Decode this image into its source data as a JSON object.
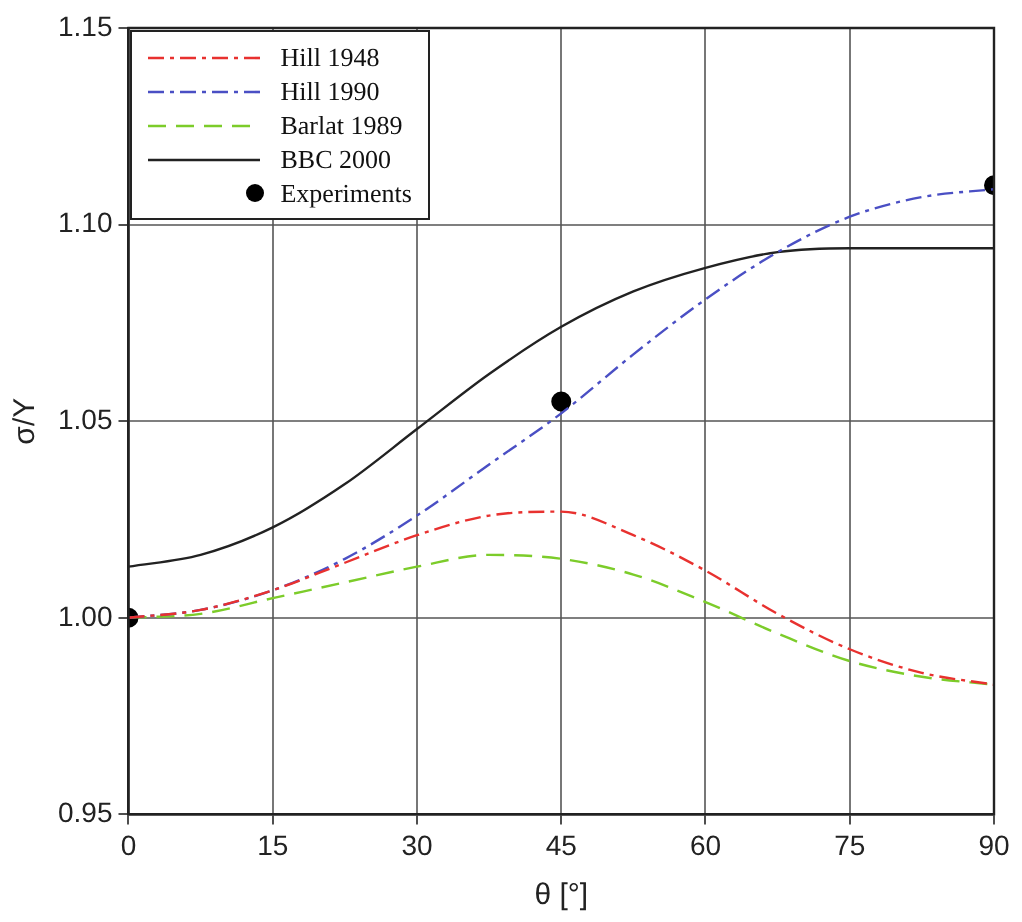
{
  "chart_data": {
    "type": "line",
    "xlabel": "θ [°]",
    "ylabel": "σ/Y",
    "xlim": [
      0,
      90
    ],
    "xticks": [
      0,
      15,
      30,
      45,
      60,
      75,
      90
    ],
    "ylim": [
      0.95,
      1.15
    ],
    "yticks": [
      {
        "value": 0.95,
        "label": "0.95"
      },
      {
        "value": 1.0,
        "label": "1.00"
      },
      {
        "value": 1.05,
        "label": "1.05"
      },
      {
        "value": 1.1,
        "label": "1.10"
      },
      {
        "value": 1.15,
        "label": "1.15"
      }
    ],
    "grid": true,
    "legend": "top left",
    "marker": "none",
    "series": [
      {
        "name": "Hill 1948",
        "color": "#e8312f",
        "line_style": "dashdot",
        "x": [
          0,
          7.5,
          15,
          22.5,
          30,
          37.5,
          45,
          52.5,
          60,
          67.5,
          75,
          82.5,
          90
        ],
        "values": [
          1.0,
          1.002,
          1.007,
          1.014,
          1.021,
          1.026,
          1.027,
          1.021,
          1.012,
          1.001,
          0.992,
          0.986,
          0.983
        ]
      },
      {
        "name": "Hill 1990",
        "color": "#4a4fc4",
        "line_style": "dashdot",
        "x": [
          0,
          7.5,
          15,
          22.5,
          30,
          37.5,
          45,
          52.5,
          60,
          67.5,
          75,
          82.5,
          90
        ],
        "values": [
          1.0,
          1.002,
          1.007,
          1.015,
          1.026,
          1.039,
          1.052,
          1.067,
          1.081,
          1.093,
          1.102,
          1.107,
          1.109
        ]
      },
      {
        "name": "Barlat 1989",
        "color": "#7ccc2a",
        "line_style": "dashed",
        "x": [
          0,
          7.5,
          15,
          22.5,
          30,
          37.5,
          45,
          52.5,
          60,
          67.5,
          75,
          82.5,
          90
        ],
        "values": [
          1.0,
          1.001,
          1.005,
          1.009,
          1.013,
          1.016,
          1.015,
          1.011,
          1.004,
          0.996,
          0.989,
          0.985,
          0.983
        ]
      },
      {
        "name": "BBC 2000",
        "color": "#222222",
        "line_style": "solid",
        "x": [
          0,
          7.5,
          15,
          22.5,
          30,
          37.5,
          45,
          52.5,
          60,
          67.5,
          75,
          90
        ],
        "values": [
          1.013,
          1.016,
          1.023,
          1.034,
          1.048,
          1.062,
          1.074,
          1.083,
          1.089,
          1.093,
          1.094,
          1.094
        ]
      },
      {
        "name": "Experiments",
        "type": "scatter",
        "marker": "circle",
        "color": "#000000",
        "x": [
          0,
          45,
          90
        ],
        "values": [
          1.0,
          1.055,
          1.11
        ]
      }
    ]
  }
}
